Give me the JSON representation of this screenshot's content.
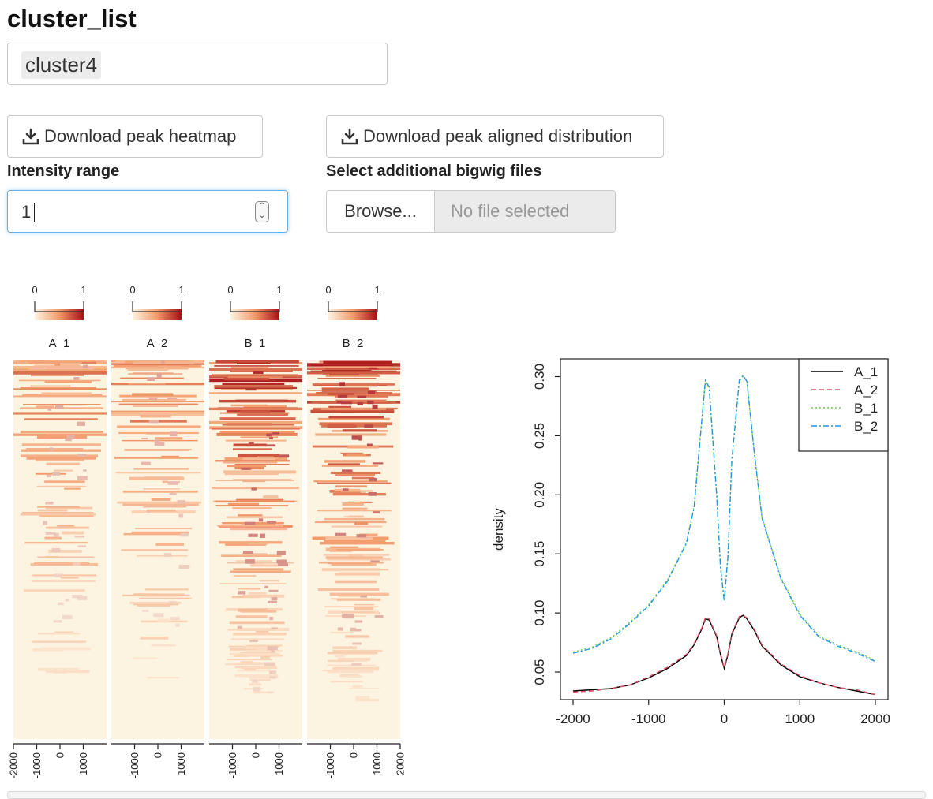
{
  "page": {
    "title": "cluster_list",
    "cluster_select": {
      "selected": "cluster4"
    },
    "buttons": {
      "download_heatmap": "Download peak heatmap",
      "download_distribution": "Download peak aligned distribution"
    },
    "intensity": {
      "label": "Intensity range",
      "value": "1"
    },
    "bigwig": {
      "label": "Select additional bigwig files",
      "browse": "Browse...",
      "status": "No file selected"
    }
  },
  "heatmap": {
    "samples": [
      "A_1",
      "A_2",
      "B_1",
      "B_2"
    ],
    "colorbar_ticks": [
      "0",
      "1"
    ],
    "colors": {
      "low": "#fdf3e1",
      "mid": "#f29a6a",
      "high": "#a50f15"
    }
  },
  "chart_data": [
    {
      "type": "heatmap",
      "series": [
        {
          "name": "A_1",
          "x_ticks": [
            "-2000",
            "-1000",
            "0",
            "1000"
          ]
        },
        {
          "name": "A_2",
          "x_ticks": [
            "-1000",
            "0",
            "1000"
          ]
        },
        {
          "name": "B_1",
          "x_ticks": [
            "-1000",
            "0",
            "1000"
          ]
        },
        {
          "name": "B_2",
          "x_ticks": [
            "-1000",
            "0",
            "1000",
            "2000"
          ]
        }
      ],
      "colorbar_range": [
        0,
        1
      ]
    },
    {
      "type": "line",
      "title": "",
      "xlabel": "",
      "ylabel": "density",
      "xlim": [
        -2000,
        2000
      ],
      "ylim": [
        0.03,
        0.305
      ],
      "x_ticks": [
        "-2000",
        "-1000",
        "0",
        "1000",
        "2000"
      ],
      "y_ticks": [
        "0.05",
        "0.10",
        "0.15",
        "0.20",
        "0.25",
        "0.30"
      ],
      "x": [
        -2000,
        -1750,
        -1500,
        -1250,
        -1000,
        -750,
        -500,
        -400,
        -300,
        -250,
        -200,
        -100,
        -50,
        0,
        50,
        100,
        200,
        250,
        300,
        400,
        500,
        750,
        1000,
        1250,
        1500,
        1750,
        2000
      ],
      "series": [
        {
          "name": "A_1",
          "color": "#000000",
          "dash": "",
          "values": [
            0.034,
            0.035,
            0.036,
            0.039,
            0.045,
            0.053,
            0.064,
            0.073,
            0.086,
            0.095,
            0.094,
            0.08,
            0.065,
            0.053,
            0.065,
            0.082,
            0.096,
            0.098,
            0.095,
            0.085,
            0.072,
            0.056,
            0.046,
            0.041,
            0.037,
            0.034,
            0.031
          ]
        },
        {
          "name": "A_2",
          "color": "#df536b",
          "dash": "6,4",
          "values": [
            0.033,
            0.034,
            0.036,
            0.039,
            0.046,
            0.054,
            0.065,
            0.074,
            0.087,
            0.096,
            0.095,
            0.081,
            0.066,
            0.054,
            0.066,
            0.083,
            0.097,
            0.098,
            0.096,
            0.086,
            0.073,
            0.057,
            0.047,
            0.041,
            0.037,
            0.035,
            0.031
          ]
        },
        {
          "name": "B_1",
          "color": "#61d04f",
          "dash": "2,3",
          "values": [
            0.067,
            0.071,
            0.079,
            0.092,
            0.107,
            0.128,
            0.16,
            0.19,
            0.262,
            0.296,
            0.29,
            0.2,
            0.14,
            0.11,
            0.15,
            0.23,
            0.296,
            0.3,
            0.296,
            0.235,
            0.181,
            0.13,
            0.099,
            0.081,
            0.073,
            0.067,
            0.06
          ]
        },
        {
          "name": "B_2",
          "color": "#2297e6",
          "dash": "7,3,2,3",
          "values": [
            0.066,
            0.07,
            0.078,
            0.091,
            0.106,
            0.127,
            0.159,
            0.189,
            0.261,
            0.297,
            0.291,
            0.2,
            0.139,
            0.11,
            0.149,
            0.229,
            0.297,
            0.301,
            0.296,
            0.234,
            0.18,
            0.129,
            0.098,
            0.08,
            0.072,
            0.066,
            0.059
          ]
        }
      ],
      "legend": "top-right",
      "grid": false
    }
  ]
}
